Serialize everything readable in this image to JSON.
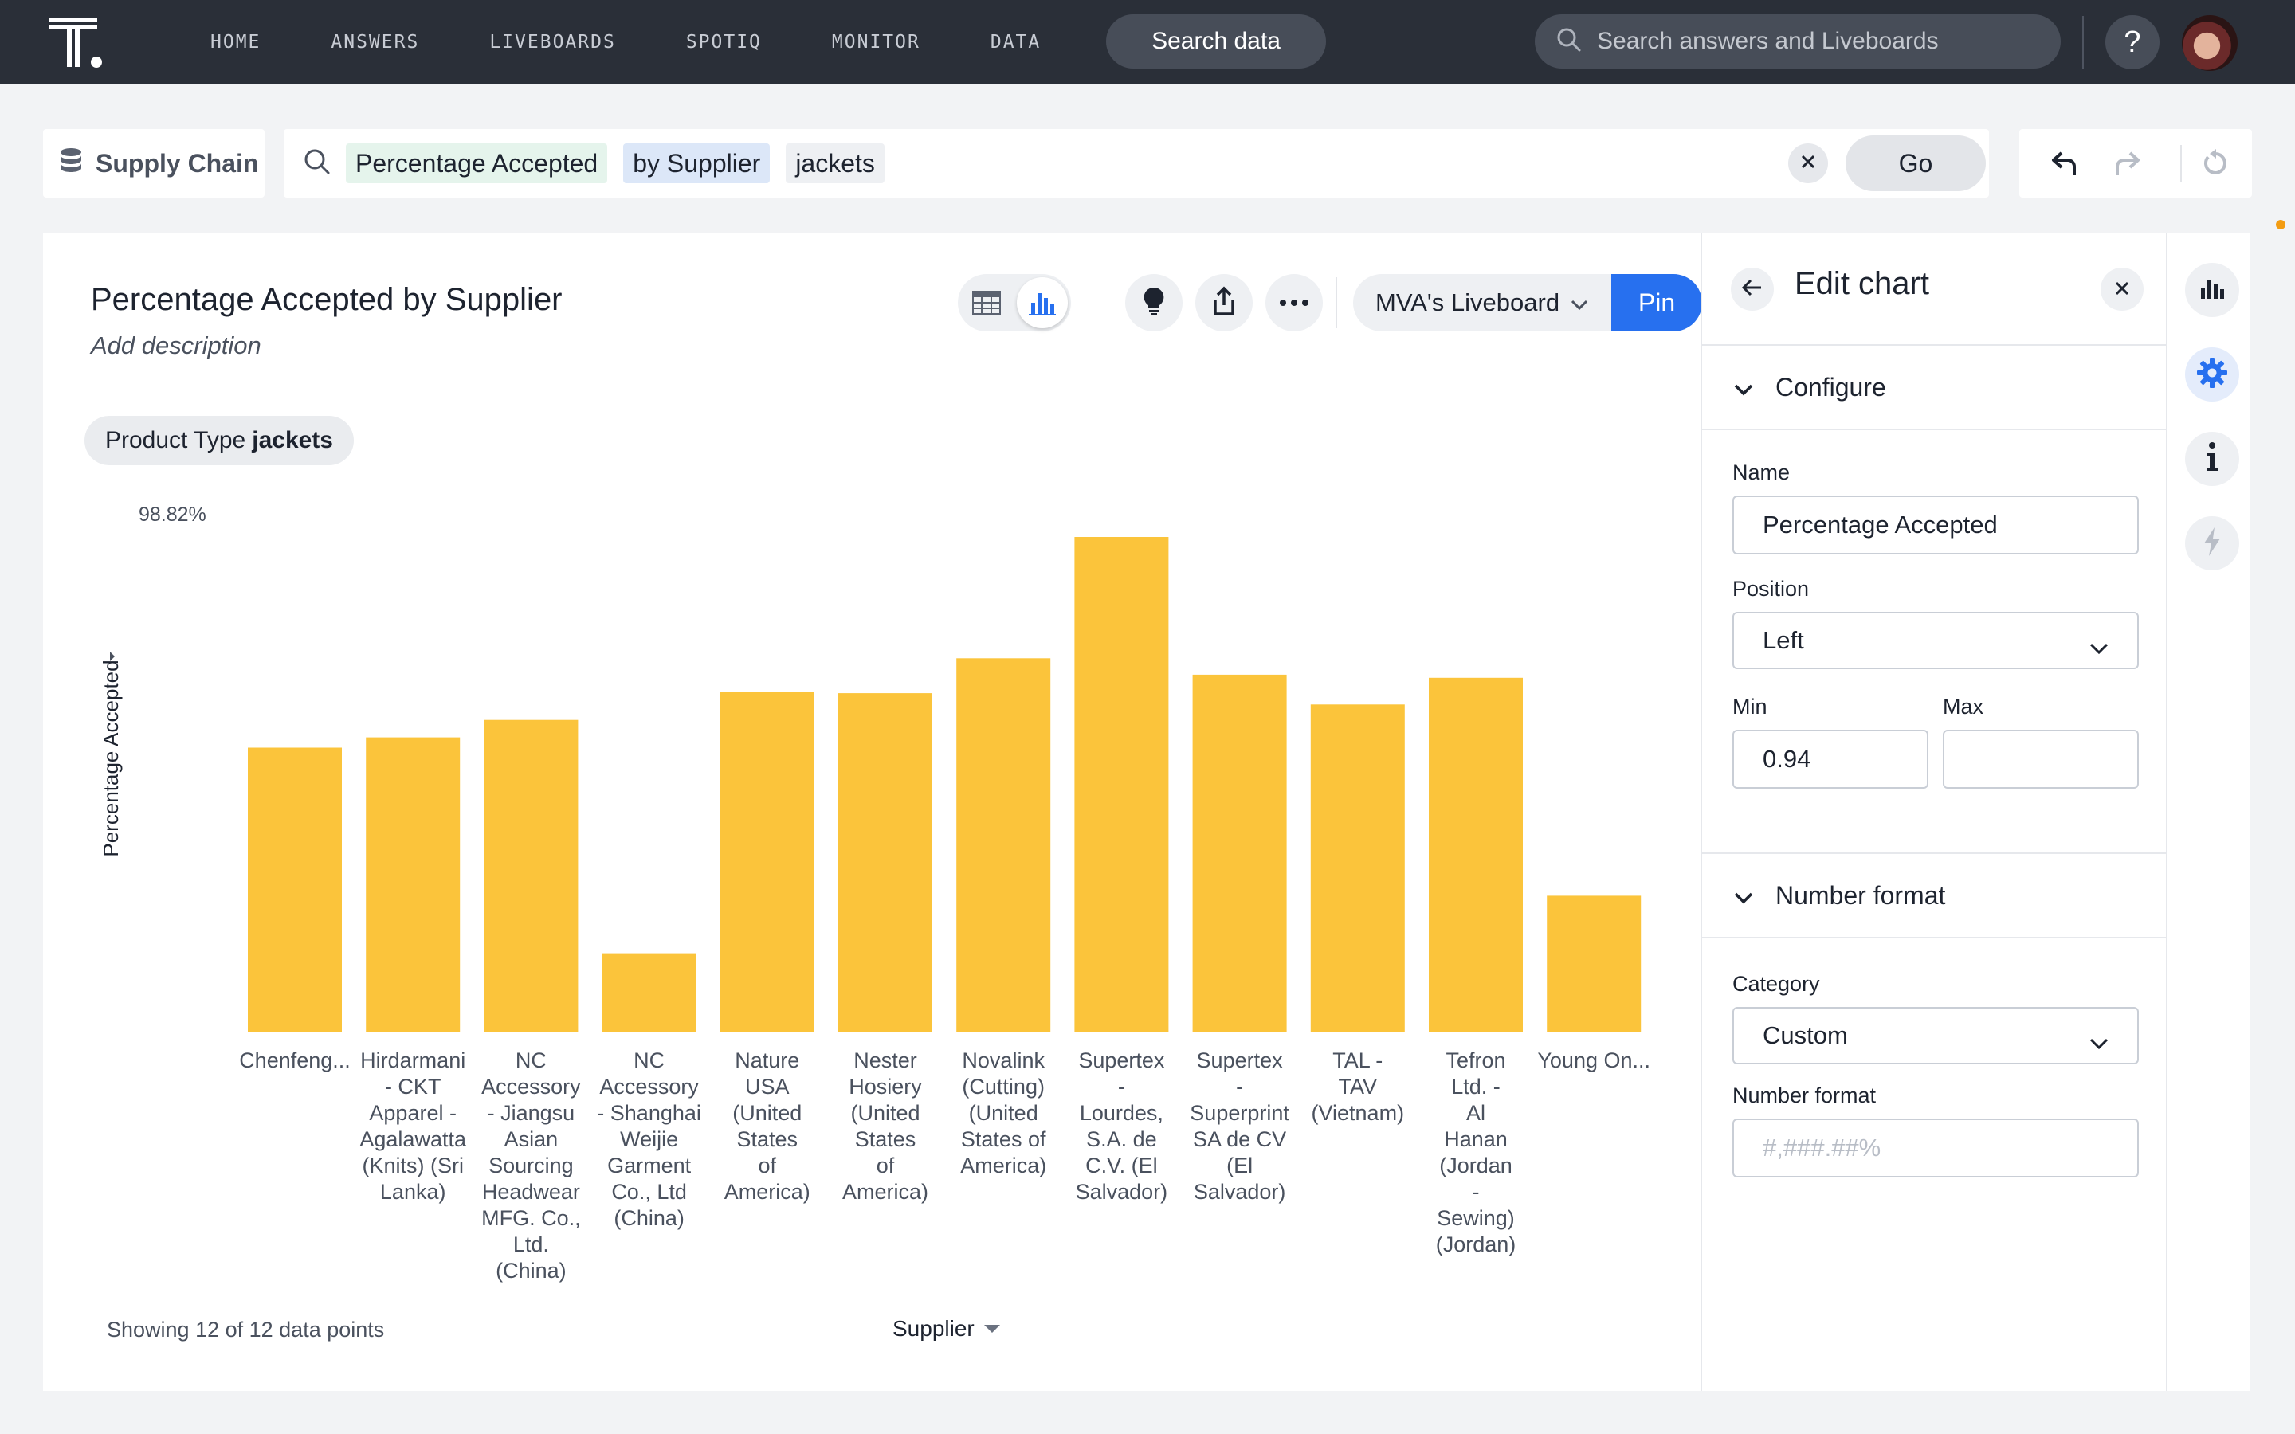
{
  "nav": {
    "items": [
      "HOME",
      "ANSWERS",
      "LIVEBOARDS",
      "SPOTIQ",
      "MONITOR",
      "DATA"
    ],
    "search_button": "Search data",
    "global_search_placeholder": "Search answers and Liveboards",
    "help": "?"
  },
  "search": {
    "source": "Supply Chain",
    "tokens": [
      {
        "text": "Percentage Accepted",
        "kind": "measure"
      },
      {
        "text": "by Supplier",
        "kind": "attribute"
      },
      {
        "text": "jackets",
        "kind": "value"
      }
    ],
    "go_label": "Go"
  },
  "answer": {
    "title": "Percentage Accepted by Supplier",
    "description_placeholder": "Add description",
    "liveboard": "MVA's Liveboard",
    "pin_label": "Pin",
    "filter": {
      "label": "Product Type",
      "value": "jackets"
    },
    "footer": "Showing 12 of 12 data points",
    "x_selector": "Supplier"
  },
  "chart_data": {
    "type": "bar",
    "ylabel": "Percentage Accepted",
    "xlabel": "Supplier",
    "y_top_label": "98.82%",
    "ylim": [
      0.94,
      0.9882
    ],
    "grid": false,
    "categories": [
      "Chenfeng...",
      "Hirdarmani - CKT Apparel - Agalawatta (Knits) (Sri Lanka)",
      "NC Accessory - Jiangsu Asian Sourcing Headwear MFG. Co., Ltd. (China)",
      "NC Accessory - Shanghai Weijie Garment Co., Ltd (China)",
      "Nature USA (United States of America)",
      "Nester Hosiery (United States of America)",
      "Novalink (Cutting) (United States of America)",
      "Supertex - Lourdes, S.A. de C.V. (El Salvador)",
      "Supertex - Superprint SA de CV (El Salvador)",
      "TAL - TAV (Vietnam)",
      "Tefron Ltd. - Al Hanan (Jordan - Sewing) (Jordan)",
      "Young On..."
    ],
    "tick_lines": [
      [
        "Chenfeng..."
      ],
      [
        "Hirdarmani",
        "- CKT",
        "Apparel -",
        "Agalawatta",
        "(Knits) (Sri",
        "Lanka)"
      ],
      [
        "NC",
        "Accessory",
        "- Jiangsu",
        "Asian",
        "Sourcing",
        "Headwear",
        "MFG. Co.,",
        "Ltd.",
        "(China)"
      ],
      [
        "NC",
        "Accessory",
        "- Shanghai",
        "Weijie",
        "Garment",
        "Co., Ltd",
        "(China)"
      ],
      [
        "Nature",
        "USA",
        "(United",
        "States",
        "of",
        "America)"
      ],
      [
        "Nester",
        "Hosiery",
        "(United",
        "States",
        "of",
        "America)"
      ],
      [
        "Novalink",
        "(Cutting)",
        "(United",
        "States of",
        "America)"
      ],
      [
        "Supertex",
        "-",
        "Lourdes,",
        "S.A. de",
        "C.V. (El",
        "Salvador)"
      ],
      [
        "Supertex",
        "-",
        "Superprint",
        "SA de CV",
        "(El",
        "Salvador)"
      ],
      [
        "TAL -",
        "TAV",
        "(Vietnam)"
      ],
      [
        "Tefron",
        "Ltd. -",
        "Al",
        "Hanan",
        "(Jordan",
        "-",
        "Sewing)",
        "(Jordan)"
      ],
      [
        "Young On..."
      ]
    ],
    "values": [
      0.9677,
      0.9687,
      0.9704,
      0.9477,
      0.9731,
      0.973,
      0.9764,
      0.9882,
      0.9748,
      0.9719,
      0.9745,
      0.9533
    ],
    "color": "#fbc43b"
  },
  "panel": {
    "title": "Edit chart",
    "configure": "Configure",
    "name_label": "Name",
    "name_value": "Percentage Accepted",
    "position_label": "Position",
    "position_value": "Left",
    "min_label": "Min",
    "min_value": "0.94",
    "max_label": "Max",
    "max_value": "",
    "number_format_section": "Number format",
    "category_label": "Category",
    "category_value": "Custom",
    "number_format_label": "Number format",
    "number_format_placeholder": "#,###.##%"
  },
  "colors": {
    "nav_bg": "#2a2f38",
    "accent": "#2770ef",
    "bar": "#fbc43b"
  }
}
